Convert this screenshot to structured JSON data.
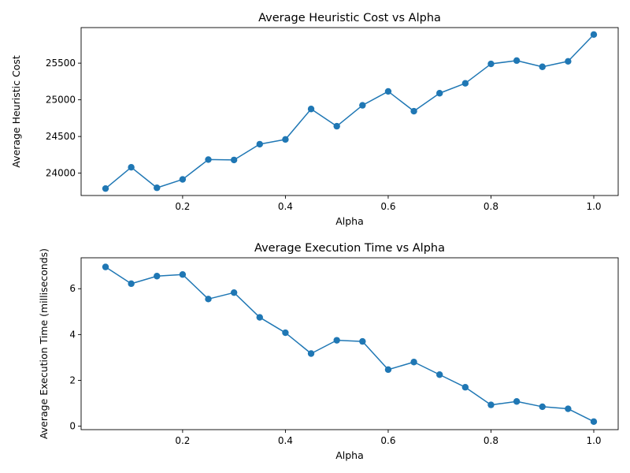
{
  "chart_data": [
    {
      "type": "line",
      "title": "Average Heuristic Cost vs Alpha",
      "xlabel": "Alpha",
      "ylabel": "Average Heuristic Cost",
      "xlim": [
        0.0025,
        1.0475
      ],
      "ylim": [
        23695,
        25985
      ],
      "xticks": [
        0.2,
        0.4,
        0.6,
        0.8,
        1.0
      ],
      "xtick_labels": [
        "0.2",
        "0.4",
        "0.6",
        "0.8",
        "1.0"
      ],
      "yticks": [
        24000,
        24500,
        25000,
        25500
      ],
      "ytick_labels": [
        "24000",
        "24500",
        "25000",
        "25500"
      ],
      "grid": false,
      "series": [
        {
          "color": "#1f77b4",
          "marker": "circle",
          "x": [
            0.05,
            0.1,
            0.15,
            0.2,
            0.25,
            0.3,
            0.35,
            0.4,
            0.45,
            0.5,
            0.55,
            0.6,
            0.65,
            0.7,
            0.75,
            0.8,
            0.85,
            0.9,
            0.95,
            1.0
          ],
          "y": [
            23790,
            24080,
            23800,
            23915,
            24185,
            24180,
            24395,
            24460,
            24875,
            24640,
            24925,
            25115,
            24845,
            25090,
            25225,
            25490,
            25535,
            25450,
            25525,
            25890
          ]
        }
      ]
    },
    {
      "type": "line",
      "title": "Average Execution Time vs Alpha",
      "xlabel": "Alpha",
      "ylabel": "Average Execution Time (milliseconds)",
      "xlim": [
        0.0025,
        1.0475
      ],
      "ylim": [
        -0.15,
        7.35
      ],
      "xticks": [
        0.2,
        0.4,
        0.6,
        0.8,
        1.0
      ],
      "xtick_labels": [
        "0.2",
        "0.4",
        "0.6",
        "0.8",
        "1.0"
      ],
      "yticks": [
        0,
        2,
        4,
        6
      ],
      "ytick_labels": [
        "0",
        "2",
        "4",
        "6"
      ],
      "grid": false,
      "series": [
        {
          "color": "#1f77b4",
          "marker": "circle",
          "x": [
            0.05,
            0.1,
            0.15,
            0.2,
            0.25,
            0.3,
            0.35,
            0.4,
            0.45,
            0.5,
            0.55,
            0.6,
            0.65,
            0.7,
            0.75,
            0.8,
            0.85,
            0.9,
            0.95,
            1.0
          ],
          "y": [
            6.95,
            6.22,
            6.55,
            6.62,
            5.55,
            5.83,
            4.75,
            4.08,
            3.17,
            3.75,
            3.7,
            2.47,
            2.8,
            2.25,
            1.7,
            0.93,
            1.08,
            0.85,
            0.76,
            0.2
          ]
        }
      ]
    }
  ]
}
